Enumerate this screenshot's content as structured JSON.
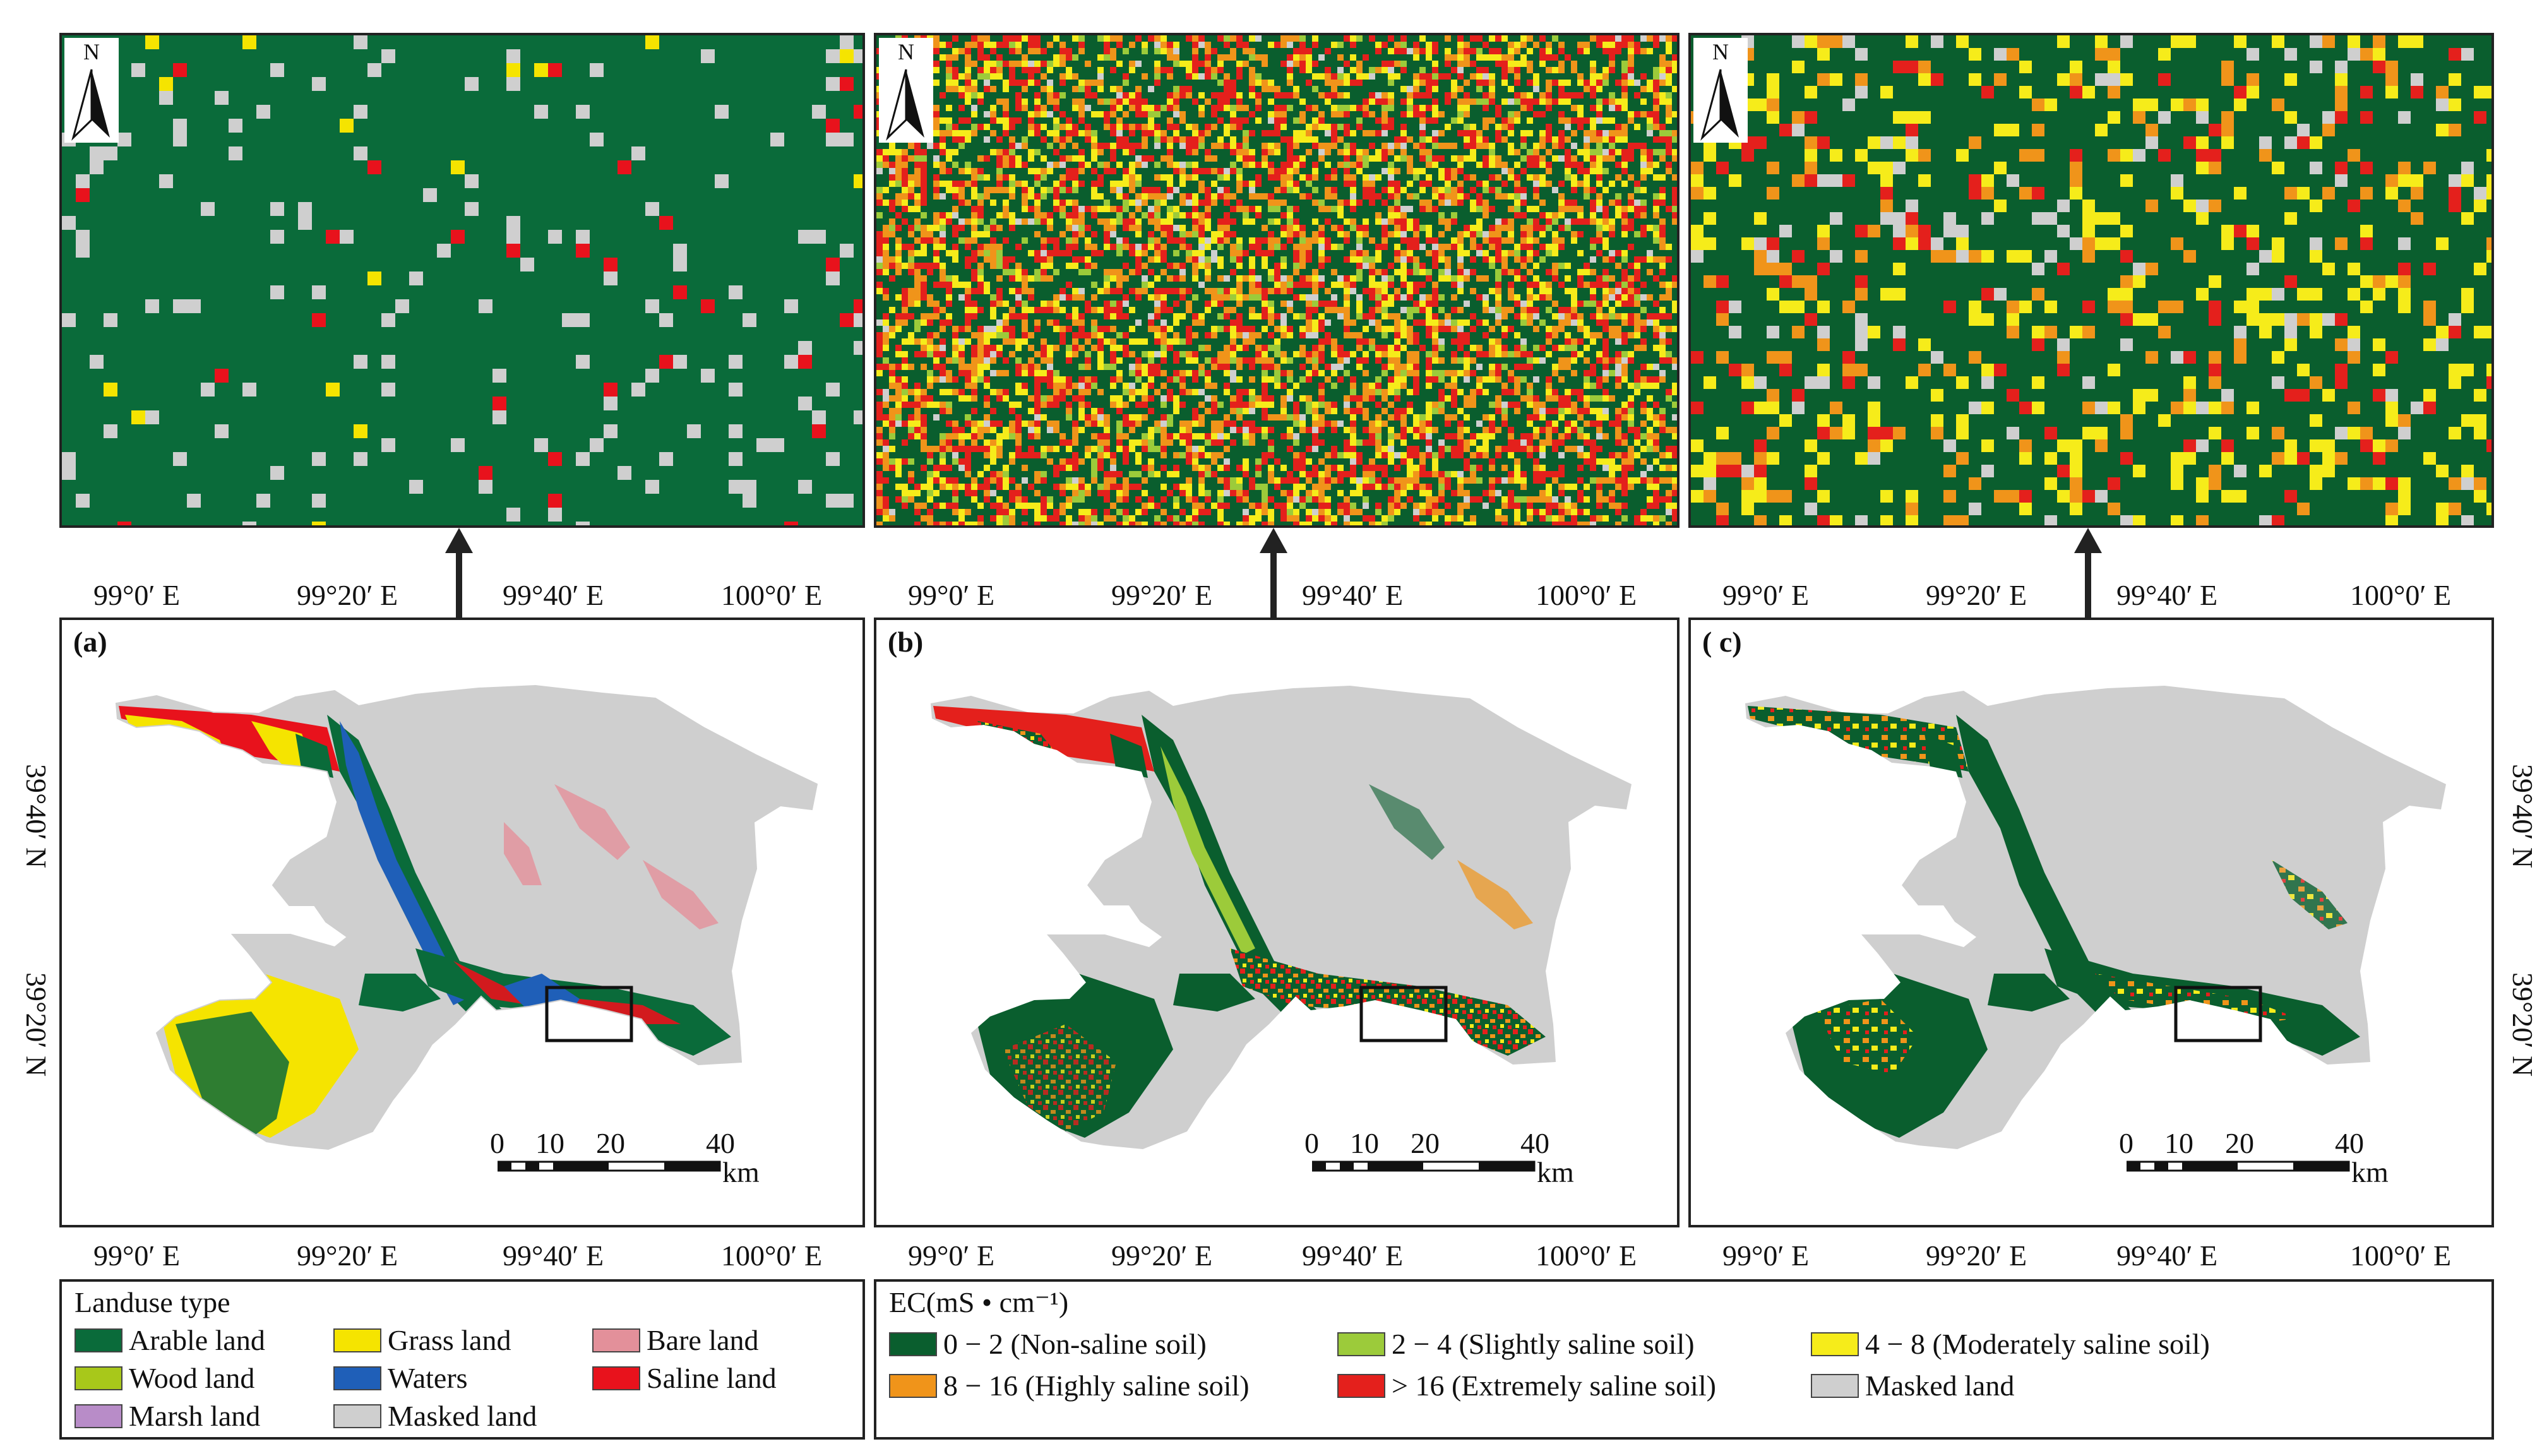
{
  "colors": {
    "arable": "#0a6b3a",
    "grass": "#f5e400",
    "bare": "#e3909a",
    "wood": "#a8c81a",
    "waters": "#1f5fb8",
    "saline": "#e8121c",
    "marsh": "#b88cc8",
    "masked": "#cfcfcf",
    "ec_non": "#0a5e2e",
    "ec_slight": "#9ccb3a",
    "ec_moderate": "#f6ec1a",
    "ec_high": "#f0941a",
    "ec_extreme": "#e4201c"
  },
  "north_label": "N",
  "axis": {
    "top_lon": [
      "99°0′ E",
      "99°20′ E",
      "99°40′ E",
      "100°0′ E"
    ],
    "bottom_lon": [
      "99°0′ E",
      "99°20′ E",
      "99°40′ E",
      "100°0′ E"
    ],
    "lat": [
      "39°40′ N",
      "39°20′ N"
    ]
  },
  "panels": [
    {
      "label": "(a)"
    },
    {
      "label": "(b)"
    },
    {
      "label": "( c)"
    }
  ],
  "scale_bar": {
    "ticks": [
      "0",
      "10",
      "20",
      "40"
    ],
    "unit": "km"
  },
  "legend_landuse": {
    "title": "Landuse type",
    "items": [
      {
        "label": "Arable land",
        "color_key": "arable"
      },
      {
        "label": "Grass land",
        "color_key": "grass"
      },
      {
        "label": "Bare land",
        "color_key": "bare"
      },
      {
        "label": "Wood land",
        "color_key": "wood"
      },
      {
        "label": "Waters",
        "color_key": "waters"
      },
      {
        "label": "Saline land",
        "color_key": "saline"
      },
      {
        "label": "Marsh land",
        "color_key": "marsh"
      },
      {
        "label": "Masked land",
        "color_key": "masked"
      }
    ]
  },
  "legend_ec": {
    "title": "EC(mS • cm⁻¹)",
    "items": [
      {
        "label": "0 − 2 (Non-saline soil)",
        "color_key": "ec_non"
      },
      {
        "label": "2 − 4 (Slightly saline soil)",
        "color_key": "ec_slight"
      },
      {
        "label": "4 − 8 (Moderately saline soil)",
        "color_key": "ec_moderate"
      },
      {
        "label": "8 − 16 (Highly saline soil)",
        "color_key": "ec_high"
      },
      {
        "label": "> 16 (Extremely saline soil)",
        "color_key": "ec_extreme"
      },
      {
        "label": "Masked land",
        "color_key": "masked"
      }
    ]
  }
}
